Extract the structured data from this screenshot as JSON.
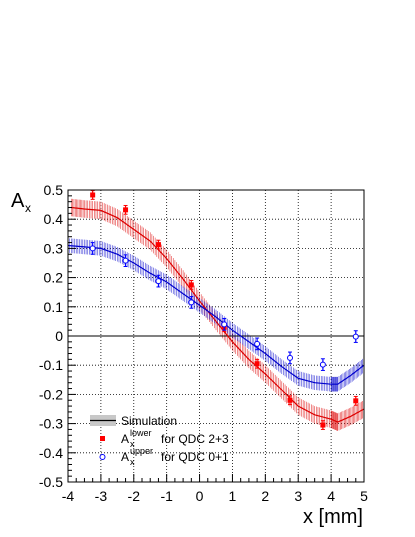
{
  "chart_data": {
    "type": "line",
    "title": "",
    "xlabel": "x [mm]",
    "ylabel": "A",
    "ylabel_sub": "x",
    "xlim": [
      -4,
      5
    ],
    "ylim": [
      -0.5,
      0.5
    ],
    "xticks": [
      "-4",
      "-3",
      "-2",
      "-1",
      "0",
      "1",
      "2",
      "3",
      "4",
      "5"
    ],
    "yticks": [
      "-0.5",
      "-0.4",
      "-0.3",
      "-0.2",
      "-0.1",
      "0",
      "0.1",
      "0.2",
      "0.3",
      "0.4",
      "0.5"
    ],
    "grid": true,
    "zero_line": true,
    "legend": {
      "position": "bottom-left",
      "entries": [
        {
          "text": "Simulation",
          "marker": "band"
        },
        {
          "prefix": "A",
          "sub": "x",
          "sup": "lower",
          "suffix": "for QDC 2+3",
          "marker": "filled-square",
          "color": "#ff0000"
        },
        {
          "prefix": "A",
          "sub": "x",
          "sup": "upper",
          "suffix": "for QDC 0+1",
          "marker": "open-circle",
          "color": "#0000ff"
        }
      ]
    },
    "series": [
      {
        "name": "A_x^lower for QDC 2+3",
        "kind": "data",
        "color": "#ff0000",
        "marker": "filled-square",
        "x": [
          -3.25,
          -2.25,
          -1.25,
          -0.25,
          0.75,
          1.75,
          2.75,
          3.75,
          4.75
        ],
        "y": [
          0.483,
          0.432,
          0.313,
          0.175,
          0.03,
          -0.095,
          -0.22,
          -0.305,
          -0.222
        ],
        "yerr": [
          0.015,
          0.015,
          0.015,
          0.015,
          0.015,
          0.015,
          0.015,
          0.015,
          0.015
        ]
      },
      {
        "name": "A_x^upper for QDC 0+1",
        "kind": "data",
        "color": "#0000ff",
        "marker": "open-circle",
        "x": [
          -3.25,
          -2.25,
          -1.25,
          -0.25,
          0.75,
          1.75,
          2.75,
          3.75,
          4.75
        ],
        "y": [
          0.3,
          0.258,
          0.188,
          0.115,
          0.04,
          -0.027,
          -0.075,
          -0.098,
          -0.002
        ],
        "yerr": [
          0.02,
          0.02,
          0.02,
          0.02,
          0.02,
          0.02,
          0.02,
          0.02,
          0.02
        ]
      },
      {
        "name": "Simulation (lower)",
        "kind": "simulation",
        "color": "#dd0000",
        "x": [
          -3.9,
          -3.5,
          -3.0,
          -2.5,
          -2.0,
          -1.5,
          -1.0,
          -0.5,
          0.0,
          0.5,
          1.0,
          1.5,
          2.0,
          2.5,
          3.0,
          3.5,
          4.0,
          4.2,
          4.6,
          5.0
        ],
        "y": [
          0.44,
          0.435,
          0.43,
          0.405,
          0.365,
          0.325,
          0.265,
          0.195,
          0.12,
          0.05,
          -0.02,
          -0.08,
          -0.13,
          -0.185,
          -0.24,
          -0.27,
          -0.285,
          -0.295,
          -0.275,
          -0.25
        ],
        "band": 0.03
      },
      {
        "name": "Simulation (upper)",
        "kind": "simulation",
        "color": "#0000cc",
        "x": [
          -4.0,
          -3.5,
          -3.0,
          -2.5,
          -2.0,
          -1.5,
          -1.0,
          -0.5,
          0.0,
          0.5,
          1.0,
          1.5,
          2.0,
          2.5,
          3.0,
          3.5,
          4.0,
          4.2,
          4.6,
          5.0
        ],
        "y": [
          0.31,
          0.305,
          0.3,
          0.28,
          0.25,
          0.215,
          0.185,
          0.145,
          0.105,
          0.065,
          0.02,
          -0.02,
          -0.06,
          -0.105,
          -0.145,
          -0.16,
          -0.165,
          -0.165,
          -0.135,
          -0.1
        ],
        "band": 0.025
      }
    ]
  }
}
